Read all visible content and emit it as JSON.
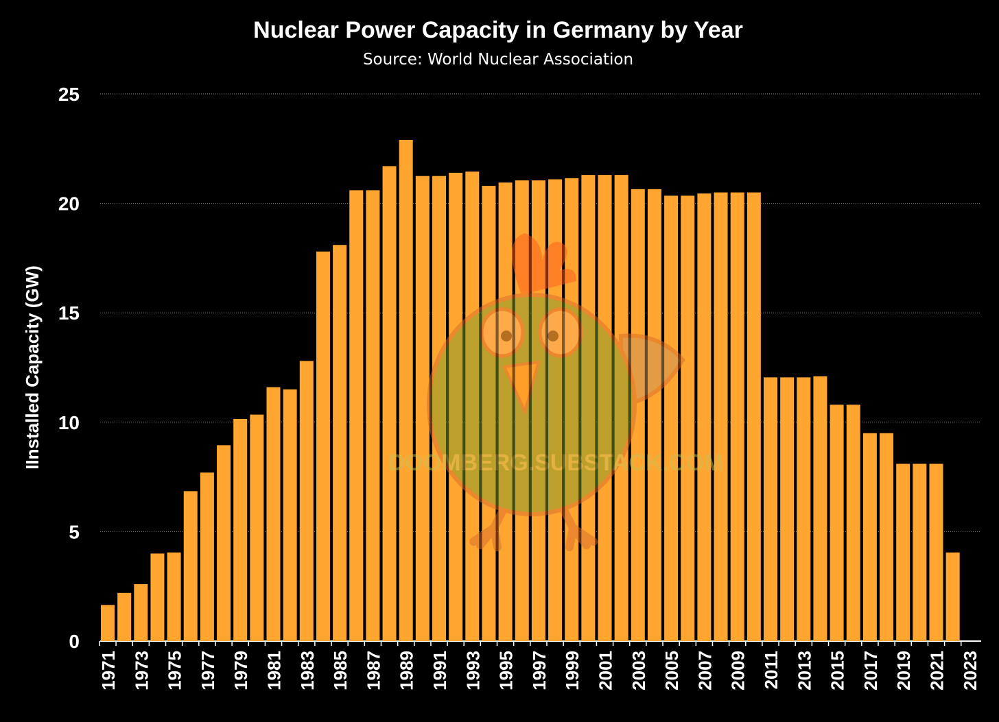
{
  "chart_data": {
    "type": "bar",
    "title": "Nuclear Power Capacity in Germany by Year",
    "subtitle": "Source: World Nuclear Association",
    "ylabel": "IInstalled Capacity (GW)",
    "xlabel": "",
    "ylim": [
      0,
      25
    ],
    "yticks": [
      0,
      5,
      10,
      15,
      20,
      25
    ],
    "grid": true,
    "legend": "none",
    "categories": [
      "1971",
      "1972",
      "1973",
      "1974",
      "1975",
      "1976",
      "1977",
      "1978",
      "1979",
      "1980",
      "1981",
      "1982",
      "1983",
      "1984",
      "1985",
      "1986",
      "1987",
      "1988",
      "1989",
      "1990",
      "1991",
      "1992",
      "1993",
      "1994",
      "1995",
      "1996",
      "1997",
      "1998",
      "1999",
      "2000",
      "2001",
      "2002",
      "2003",
      "2004",
      "2005",
      "2006",
      "2007",
      "2008",
      "2009",
      "2010",
      "2011",
      "2012",
      "2013",
      "2014",
      "2015",
      "2016",
      "2017",
      "2018",
      "2019",
      "2020",
      "2021",
      "2022",
      "2023"
    ],
    "xtick_labels": [
      "1971",
      "1973",
      "1975",
      "1977",
      "1979",
      "1981",
      "1983",
      "1985",
      "1987",
      "1989",
      "1991",
      "1993",
      "1995",
      "1997",
      "1999",
      "2001",
      "2003",
      "2005",
      "2007",
      "2009",
      "2011",
      "2013",
      "2015",
      "2017",
      "2019",
      "2021",
      "2023"
    ],
    "values": [
      1.65,
      2.2,
      2.6,
      4.0,
      4.05,
      6.85,
      7.7,
      8.95,
      10.15,
      10.35,
      11.6,
      11.5,
      12.8,
      17.8,
      18.1,
      20.6,
      20.6,
      21.7,
      22.9,
      21.25,
      21.25,
      21.4,
      21.45,
      20.8,
      20.95,
      21.05,
      21.05,
      21.1,
      21.15,
      21.3,
      21.3,
      21.3,
      20.65,
      20.65,
      20.35,
      20.35,
      20.45,
      20.5,
      20.5,
      20.5,
      12.05,
      12.05,
      12.05,
      12.1,
      10.8,
      10.8,
      9.5,
      9.5,
      8.1,
      8.1,
      8.1,
      4.05,
      0
    ]
  },
  "watermark": {
    "text": "DOOMBERG.SUBSTACK.COM",
    "icon": "chicken-mascot-icon"
  },
  "colors": {
    "bar": "#FFA530",
    "background": "#000000",
    "text": "#FFFFFF",
    "grid": "#8a8a8a"
  }
}
